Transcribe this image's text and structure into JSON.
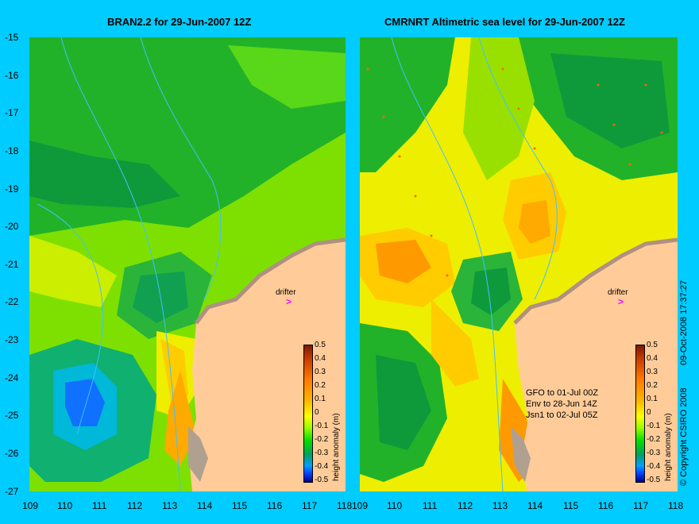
{
  "titles": {
    "left": "BRAN2.2 for 29-Jun-2007 12Z",
    "right": "CMRNRT Altimetric sea level  for 29-Jun-2007 12Z"
  },
  "y_ticks": [
    "-15",
    "-16",
    "-17",
    "-18",
    "-19",
    "-20",
    "-21",
    "-22",
    "-23",
    "-24",
    "-25",
    "-26",
    "-27"
  ],
  "x_ticks_left": [
    "109",
    "110",
    "111",
    "112",
    "113",
    "114",
    "115",
    "116",
    "117",
    "118"
  ],
  "x_ticks_right": [
    "109",
    "110",
    "111",
    "112",
    "113",
    "114",
    "115",
    "116",
    "117",
    "118"
  ],
  "colorbar": {
    "labels": [
      "0.5",
      "0.4",
      "0.3",
      "0.2",
      "0.1",
      "0",
      "-0.1",
      "-0.2",
      "-0.3",
      "-0.4",
      "-0.5"
    ],
    "title": "height anomaly (m)"
  },
  "drifter_label": "drifter",
  "drifter_symbol": ">",
  "info_lines": [
    "GFO to 01-Jul 00Z",
    "Env to 28-Jun 14Z",
    "Jsn1 to 02-Jul 05Z"
  ],
  "side_date": "09-Oct-2008 17:37:27",
  "copyright": "© Copyright CSIRO 2008",
  "colors": {
    "background": "#00ccff",
    "land": "#ffcc99",
    "drifter": "#ff00ff",
    "contour": "#40c0ff"
  }
}
